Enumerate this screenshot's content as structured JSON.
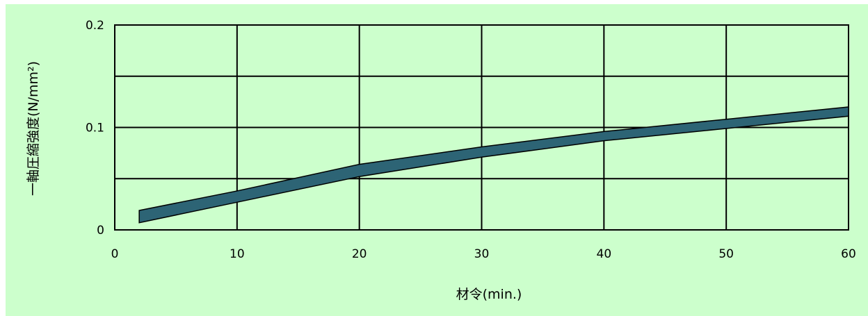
{
  "chart_data": {
    "type": "area",
    "title": "",
    "xlabel": "材令(min.)",
    "ylabel": "一軸圧縮強度(N/mm²)",
    "xlim": [
      0,
      60
    ],
    "ylim": [
      0,
      0.2
    ],
    "x_ticks": [
      "0",
      "10",
      "20",
      "30",
      "40",
      "50",
      "60"
    ],
    "y_ticks": [
      "0",
      "0.1",
      "0.2"
    ],
    "grid": true,
    "series": [
      {
        "upper": [
          [
            2,
            0.019
          ],
          [
            10,
            0.038
          ],
          [
            20,
            0.064
          ],
          [
            30,
            0.081
          ],
          [
            40,
            0.096
          ],
          [
            50,
            0.108
          ],
          [
            60,
            0.12
          ]
        ],
        "lower": [
          [
            2,
            0.007
          ],
          [
            10,
            0.027
          ],
          [
            20,
            0.052
          ],
          [
            30,
            0.071
          ],
          [
            40,
            0.087
          ],
          [
            50,
            0.099
          ],
          [
            60,
            0.111
          ]
        ]
      }
    ],
    "colors": {
      "band": "#2d6475",
      "band_edge": "#000000",
      "background": "#ccffcc",
      "grid": "#000000"
    }
  }
}
